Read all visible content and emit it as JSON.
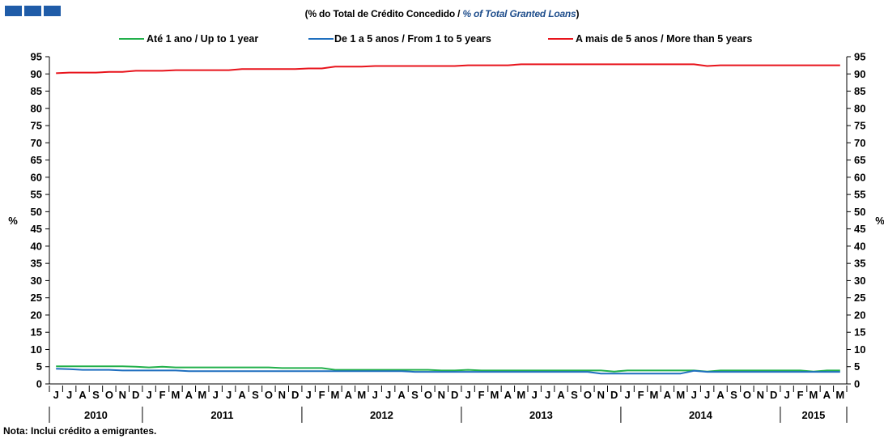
{
  "header": {
    "subtitle_pt": "(% do Total de Crédito Concedido / ",
    "subtitle_en": "% of Total Granted Loans",
    "subtitle_close": ")"
  },
  "logo": {
    "colors": [
      "#1f5ca8",
      "#1f5ca8",
      "#1f5ca8"
    ]
  },
  "note": "Nota: Inclui crédito a emigrantes.",
  "chart_data": {
    "type": "line",
    "ylabel_left": "%",
    "ylabel_right": "%",
    "ylim": [
      0,
      95
    ],
    "yticks": [
      0,
      5,
      10,
      15,
      20,
      25,
      30,
      35,
      40,
      45,
      50,
      55,
      60,
      65,
      70,
      75,
      80,
      85,
      90,
      95
    ],
    "grid": false,
    "legend_position": "top",
    "months": [
      "J",
      "J",
      "A",
      "S",
      "O",
      "N",
      "D",
      "J",
      "F",
      "M",
      "A",
      "M",
      "J",
      "J",
      "A",
      "S",
      "O",
      "N",
      "D",
      "J",
      "F",
      "M",
      "A",
      "M",
      "J",
      "J",
      "A",
      "S",
      "O",
      "N",
      "D",
      "J",
      "F",
      "M",
      "A",
      "M",
      "J",
      "J",
      "A",
      "S",
      "O",
      "N",
      "D",
      "J",
      "F",
      "M",
      "A",
      "M",
      "J",
      "J",
      "A",
      "S",
      "O",
      "N",
      "D",
      "J",
      "F",
      "M",
      "A",
      "M"
    ],
    "years": [
      {
        "label": "2010",
        "months": 7
      },
      {
        "label": "2011",
        "months": 12
      },
      {
        "label": "2012",
        "months": 12
      },
      {
        "label": "2013",
        "months": 12
      },
      {
        "label": "2014",
        "months": 12
      },
      {
        "label": "2015",
        "months": 5
      }
    ],
    "series": [
      {
        "name": "Até 1 ano / Up to 1 year",
        "color": "#22b04b",
        "values": [
          5.1,
          5.1,
          5.1,
          5.1,
          5.1,
          5.1,
          5.0,
          4.8,
          5.0,
          4.8,
          4.8,
          4.8,
          4.8,
          4.8,
          4.8,
          4.8,
          4.8,
          4.6,
          4.6,
          4.6,
          4.6,
          4.1,
          4.1,
          4.1,
          4.1,
          4.1,
          4.1,
          4.1,
          4.1,
          3.9,
          3.9,
          4.1,
          3.9,
          3.9,
          3.9,
          3.9,
          3.9,
          3.9,
          3.9,
          3.9,
          3.9,
          3.9,
          3.6,
          3.9,
          3.9,
          3.9,
          3.9,
          3.9,
          3.9,
          3.6,
          3.9,
          3.9,
          3.9,
          3.9,
          3.9,
          3.9,
          3.9,
          3.6,
          3.9,
          3.9
        ]
      },
      {
        "name": "De 1 a 5 anos / From 1 to 5 years",
        "color": "#1f6fbf",
        "values": [
          4.4,
          4.3,
          4.1,
          4.1,
          4.1,
          3.9,
          3.9,
          3.9,
          3.9,
          3.9,
          3.7,
          3.7,
          3.7,
          3.7,
          3.7,
          3.7,
          3.7,
          3.7,
          3.7,
          3.7,
          3.7,
          3.7,
          3.7,
          3.7,
          3.7,
          3.7,
          3.7,
          3.5,
          3.5,
          3.5,
          3.5,
          3.5,
          3.5,
          3.5,
          3.5,
          3.5,
          3.5,
          3.5,
          3.5,
          3.5,
          3.5,
          3.0,
          3.0,
          3.0,
          3.0,
          3.0,
          3.0,
          3.0,
          3.8,
          3.5,
          3.5,
          3.5,
          3.5,
          3.5,
          3.5,
          3.5,
          3.5,
          3.5,
          3.5,
          3.5
        ]
      },
      {
        "name": "A mais de 5 anos / More than 5 years",
        "color": "#e8141c",
        "values": [
          90.2,
          90.4,
          90.4,
          90.4,
          90.6,
          90.6,
          90.9,
          90.9,
          90.9,
          91.1,
          91.1,
          91.1,
          91.1,
          91.1,
          91.4,
          91.4,
          91.4,
          91.4,
          91.4,
          91.6,
          91.6,
          92.1,
          92.1,
          92.1,
          92.3,
          92.3,
          92.3,
          92.3,
          92.3,
          92.3,
          92.3,
          92.5,
          92.5,
          92.5,
          92.5,
          92.8,
          92.8,
          92.8,
          92.8,
          92.8,
          92.8,
          92.8,
          92.8,
          92.8,
          92.8,
          92.8,
          92.8,
          92.8,
          92.8,
          92.3,
          92.5,
          92.5,
          92.5,
          92.5,
          92.5,
          92.5,
          92.5,
          92.5,
          92.5,
          92.5
        ]
      }
    ]
  }
}
